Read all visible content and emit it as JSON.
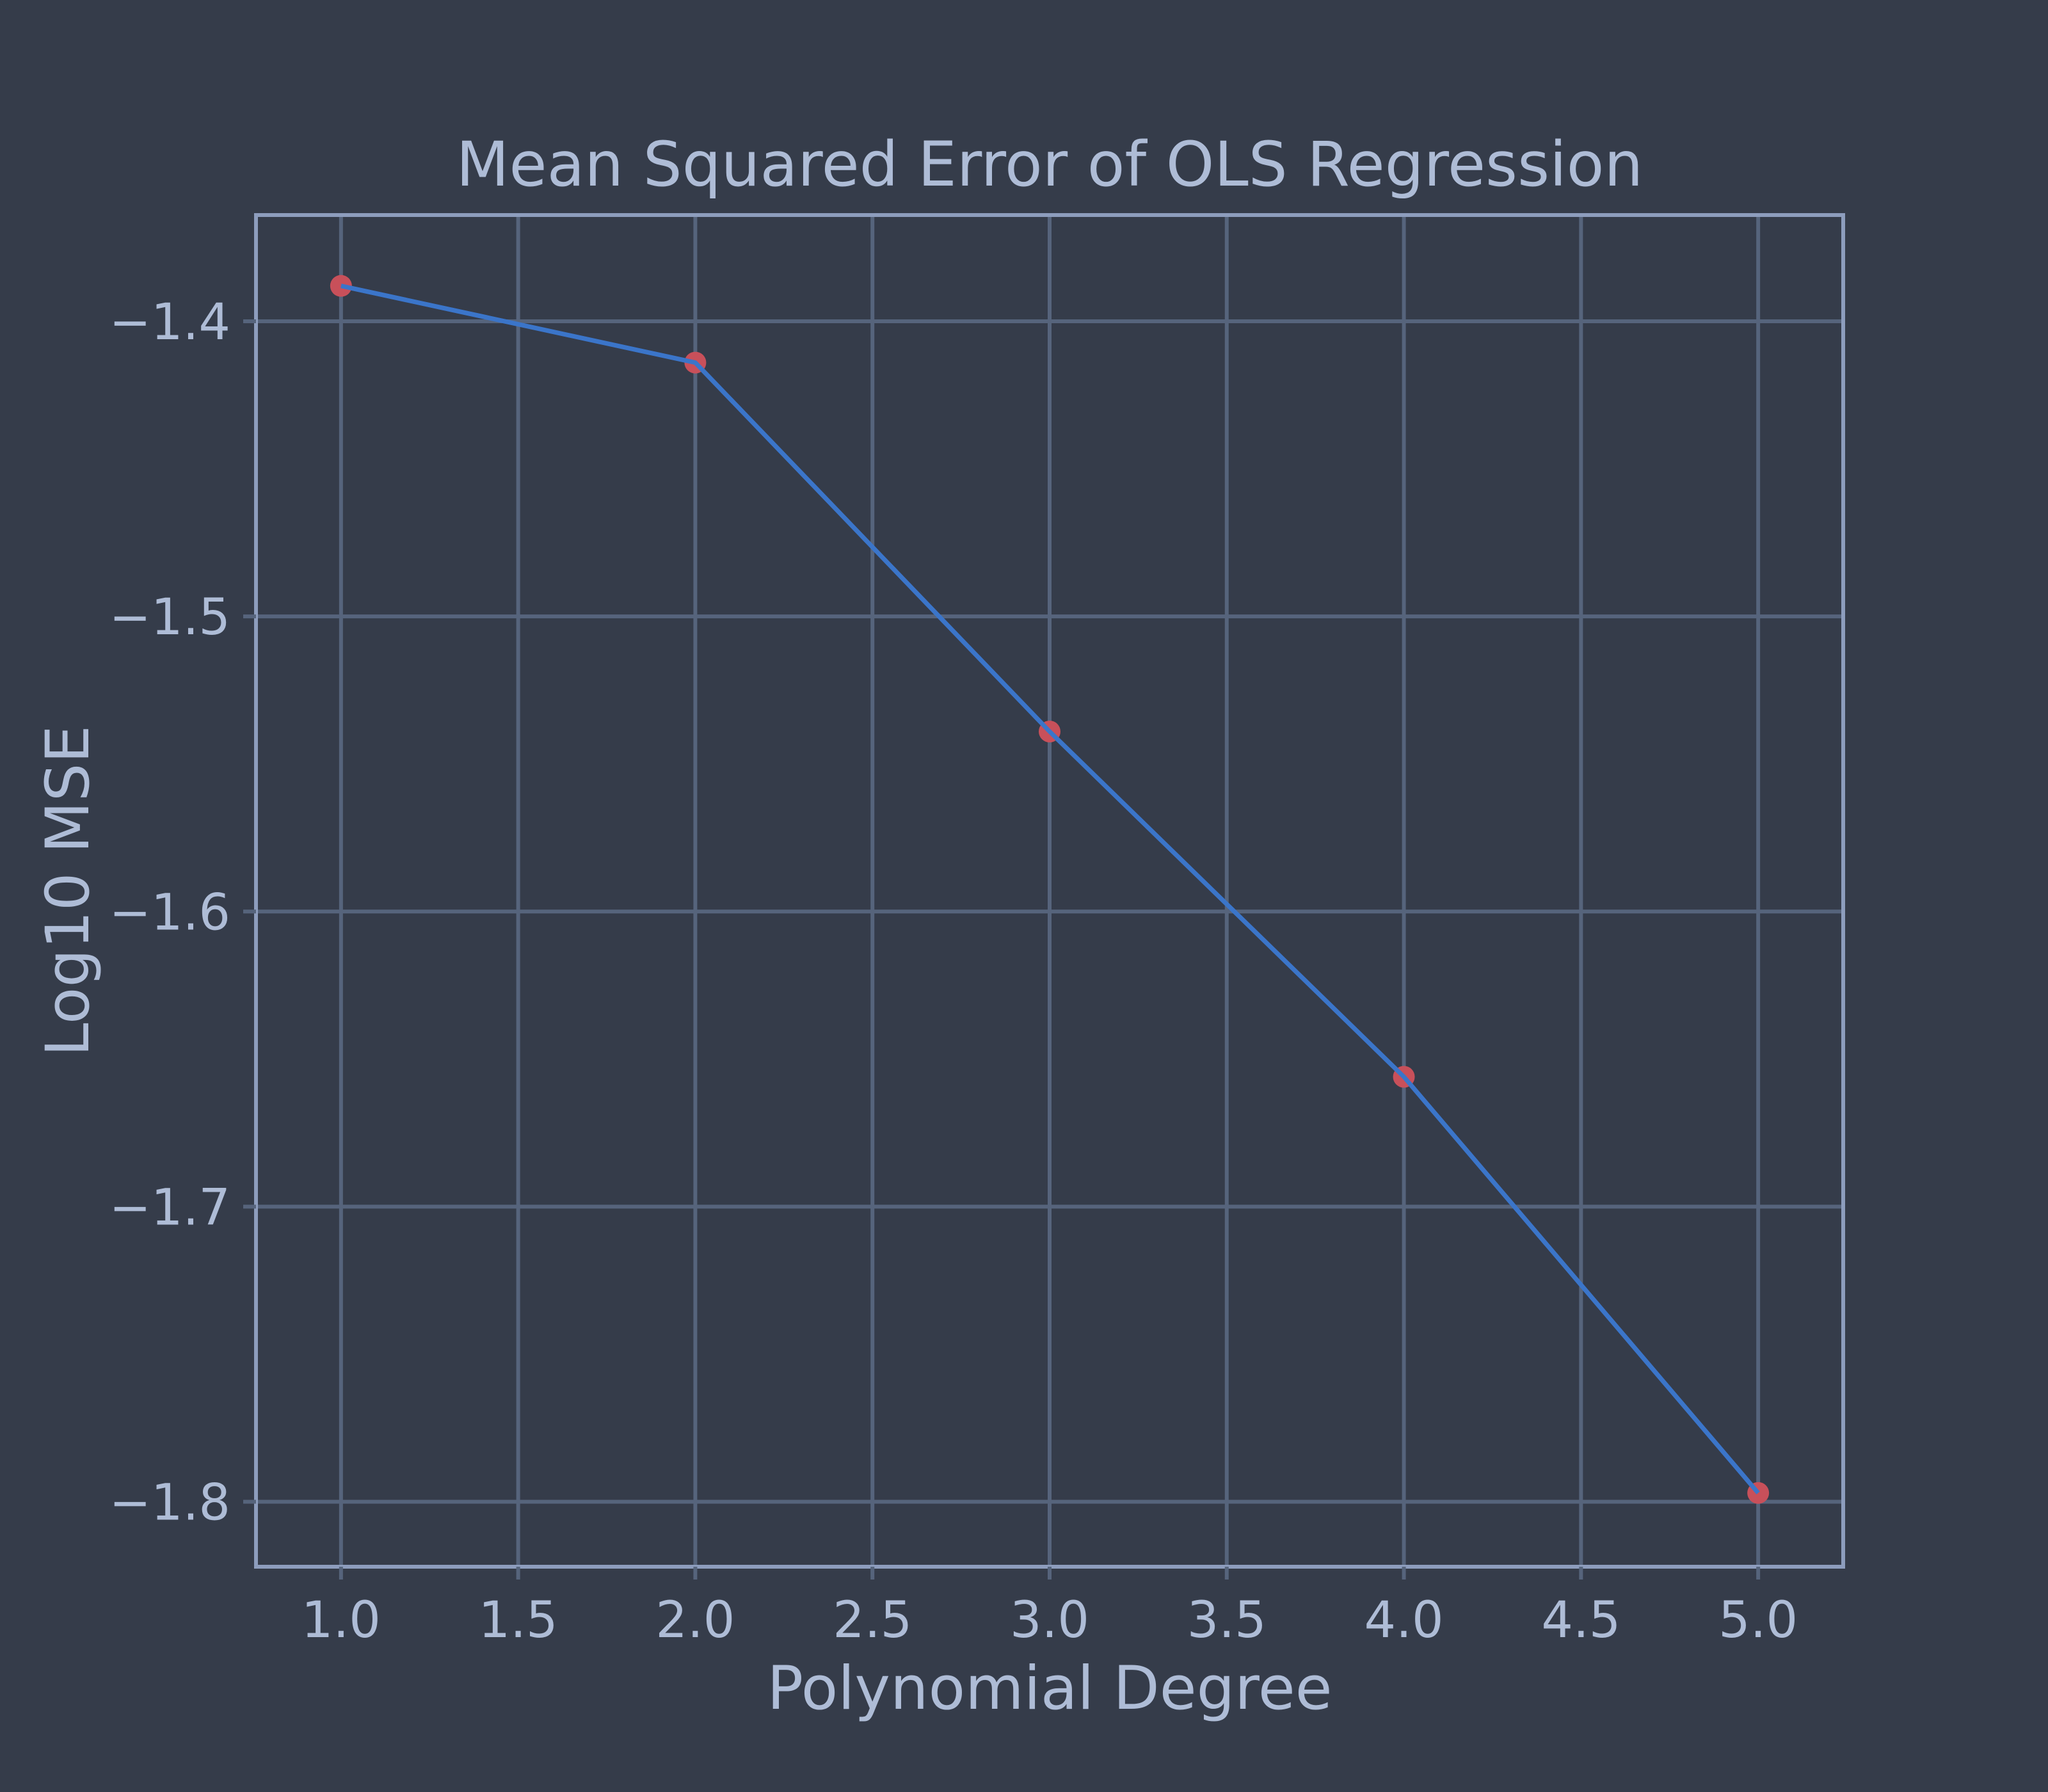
{
  "chart_data": {
    "type": "line",
    "title": "Mean Squared Error of OLS Regression",
    "xlabel": "Polynomial Degree",
    "ylabel": "Log10 MSE",
    "x": [
      1,
      2,
      3,
      4,
      5
    ],
    "series": [
      {
        "values": [
          -1.388,
          -1.414,
          -1.539,
          -1.656,
          -1.797
        ]
      }
    ],
    "xlim": [
      0.76,
      5.24
    ],
    "ylim": [
      -1.822,
      -1.364
    ],
    "xticks": [
      1.0,
      1.5,
      2.0,
      2.5,
      3.0,
      3.5,
      4.0,
      4.5,
      5.0
    ],
    "xtick_labels": [
      "1.0",
      "1.5",
      "2.0",
      "2.5",
      "3.0",
      "3.5",
      "4.0",
      "4.5",
      "5.0"
    ],
    "yticks": [
      -1.4,
      -1.5,
      -1.6,
      -1.7,
      -1.8
    ],
    "ytick_labels": [
      "−1.4",
      "−1.5",
      "−1.6",
      "−1.7",
      "−1.8"
    ],
    "grid": true,
    "colors": {
      "background": "#353c4a",
      "line": "#3b75c9",
      "marker": "#c8505a",
      "grid": "#56647c",
      "frame": "#8d9dbd",
      "text": "#aebcd6"
    }
  }
}
